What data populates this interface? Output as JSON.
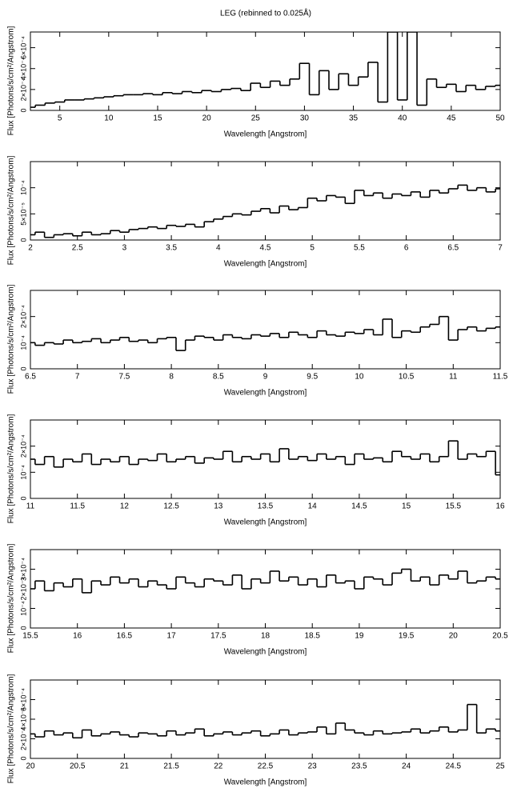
{
  "chart_data": [
    {
      "type": "step",
      "title": "LEG (rebinned to 0.025Å)",
      "x_label": "Wavelength [Angstrom]",
      "y_label": "Flux [Photons/s/cm²/Angstrom]",
      "color": "#000000",
      "xlim": [
        2,
        50
      ],
      "xticks": [
        5,
        10,
        15,
        20,
        25,
        30,
        35,
        40,
        45,
        50
      ],
      "ylim": [
        0,
        0.00075
      ],
      "yticks": [
        0,
        {
          "value": 0.0002,
          "label": "2×10⁻⁴"
        },
        {
          "value": 0.0004,
          "label": "4×10⁻⁴"
        },
        {
          "value": 0.0006,
          "label": "6×10⁻⁴"
        }
      ],
      "x": [
        2,
        3,
        4,
        5,
        6,
        7,
        8,
        9,
        10,
        11,
        12,
        13,
        14,
        15,
        16,
        17,
        18,
        19,
        20,
        21,
        22,
        23,
        24,
        25,
        26,
        27,
        28,
        29,
        30,
        31,
        32,
        33,
        34,
        35,
        36,
        37,
        38,
        39,
        40,
        41,
        42,
        43,
        44,
        45,
        46,
        47,
        48,
        49,
        50
      ],
      "values": [
        3e-05,
        5e-05,
        7e-05,
        8e-05,
        0.0001,
        0.0001,
        0.00011,
        0.00012,
        0.00013,
        0.00014,
        0.00015,
        0.00015,
        0.00016,
        0.00015,
        0.00017,
        0.00016,
        0.00018,
        0.00017,
        0.00019,
        0.00018,
        0.0002,
        0.00021,
        0.00019,
        0.00026,
        0.00022,
        0.00028,
        0.00024,
        0.0003,
        0.00045,
        0.00015,
        0.00038,
        0.0002,
        0.00035,
        0.00024,
        0.00032,
        0.00046,
        8e-05,
        0.00075,
        0.0001,
        0.00075,
        5e-05,
        0.0003,
        0.00022,
        0.00025,
        0.00018,
        0.00024,
        0.0002,
        0.00023,
        0.00024
      ]
    },
    {
      "type": "step",
      "x_label": "Wavelength [Angstrom]",
      "y_label": "Flux [Photons/s/cm²/Angstrom]",
      "color": "#000000",
      "xlim": [
        2,
        7
      ],
      "xticks": [
        2,
        2.5,
        3,
        3.5,
        4,
        4.5,
        5,
        5.5,
        6,
        6.5,
        7
      ],
      "ylim": [
        0,
        0.00015
      ],
      "yticks": [
        0,
        {
          "value": 5e-05,
          "label": "5×10⁻⁵"
        },
        {
          "value": 0.0001,
          "label": "10⁻⁴"
        }
      ],
      "x": [
        2.0,
        2.1,
        2.2,
        2.3,
        2.4,
        2.5,
        2.6,
        2.7,
        2.8,
        2.9,
        3.0,
        3.1,
        3.2,
        3.3,
        3.4,
        3.5,
        3.6,
        3.7,
        3.8,
        3.9,
        4.0,
        4.1,
        4.2,
        4.3,
        4.4,
        4.5,
        4.6,
        4.7,
        4.8,
        4.9,
        5.0,
        5.1,
        5.2,
        5.3,
        5.4,
        5.5,
        5.6,
        5.7,
        5.8,
        5.9,
        6.0,
        6.1,
        6.2,
        6.3,
        6.4,
        6.5,
        6.6,
        6.7,
        6.8,
        6.9,
        7.0
      ],
      "values": [
        1e-05,
        1.5e-05,
        5e-06,
        1e-05,
        1.2e-05,
        8e-06,
        1.5e-05,
        1e-05,
        1.2e-05,
        1.8e-05,
        1.5e-05,
        2e-05,
        2.2e-05,
        2.5e-05,
        2.2e-05,
        2.8e-05,
        2.6e-05,
        3e-05,
        2.5e-05,
        3.5e-05,
        4e-05,
        4.5e-05,
        5e-05,
        4.8e-05,
        5.5e-05,
        6e-05,
        5.2e-05,
        6.5e-05,
        5.8e-05,
        6.2e-05,
        8e-05,
        7.5e-05,
        8.5e-05,
        8.2e-05,
        7e-05,
        9.5e-05,
        8.5e-05,
        9e-05,
        8e-05,
        8.8e-05,
        8.5e-05,
        9.2e-05,
        8.2e-05,
        9.5e-05,
        9e-05,
        9.8e-05,
        0.000105,
        9.5e-05,
        0.0001,
        9.2e-05,
        9.8e-05
      ]
    },
    {
      "type": "step",
      "x_label": "Wavelength [Angstrom]",
      "y_label": "Flux [Photons/s/cm²/Angstrom]",
      "color": "#000000",
      "xlim": [
        6.5,
        11.5
      ],
      "xticks": [
        6.5,
        7,
        7.5,
        8,
        8.5,
        9,
        9.5,
        10,
        10.5,
        11,
        11.5
      ],
      "ylim": [
        0,
        0.0003
      ],
      "yticks": [
        0,
        {
          "value": 0.0001,
          "label": "10⁻⁴"
        },
        {
          "value": 0.0002,
          "label": "2×10⁻⁴"
        }
      ],
      "x": [
        6.5,
        6.6,
        6.7,
        6.8,
        6.9,
        7.0,
        7.1,
        7.2,
        7.3,
        7.4,
        7.5,
        7.6,
        7.7,
        7.8,
        7.9,
        8.0,
        8.1,
        8.2,
        8.3,
        8.4,
        8.5,
        8.6,
        8.7,
        8.8,
        8.9,
        9.0,
        9.1,
        9.2,
        9.3,
        9.4,
        9.5,
        9.6,
        9.7,
        9.8,
        9.9,
        10.0,
        10.1,
        10.2,
        10.3,
        10.4,
        10.5,
        10.6,
        10.7,
        10.8,
        10.9,
        11.0,
        11.1,
        11.2,
        11.3,
        11.4,
        11.5
      ],
      "values": [
        0.0001,
        9e-05,
        0.0001,
        9.5e-05,
        0.00011,
        0.0001,
        0.000105,
        0.000115,
        0.0001,
        0.00011,
        0.00012,
        0.000105,
        0.00011,
        0.0001,
        0.000115,
        0.00012,
        7e-05,
        0.00011,
        0.000125,
        0.00012,
        0.00011,
        0.00013,
        0.00012,
        0.000115,
        0.00013,
        0.000125,
        0.000135,
        0.00012,
        0.00014,
        0.00013,
        0.00012,
        0.000145,
        0.00013,
        0.000125,
        0.00014,
        0.000135,
        0.00015,
        0.00013,
        0.00019,
        0.00012,
        0.000145,
        0.00014,
        0.00016,
        0.00017,
        0.0002,
        0.00011,
        0.00015,
        0.00016,
        0.000145,
        0.000155,
        0.00016
      ]
    },
    {
      "type": "step",
      "x_label": "Wavelength [Angstrom]",
      "y_label": "Flux [Photons/s/cm²/Angstrom]",
      "color": "#000000",
      "xlim": [
        11,
        16
      ],
      "xticks": [
        11,
        11.5,
        12,
        12.5,
        13,
        13.5,
        14,
        14.5,
        15,
        15.5,
        16
      ],
      "ylim": [
        0,
        0.0003
      ],
      "yticks": [
        0,
        {
          "value": 0.0001,
          "label": "10⁻⁴"
        },
        {
          "value": 0.0002,
          "label": "2×10⁻⁴"
        }
      ],
      "x": [
        11.0,
        11.1,
        11.2,
        11.3,
        11.4,
        11.5,
        11.6,
        11.7,
        11.8,
        11.9,
        12.0,
        12.1,
        12.2,
        12.3,
        12.4,
        12.5,
        12.6,
        12.7,
        12.8,
        12.9,
        13.0,
        13.1,
        13.2,
        13.3,
        13.4,
        13.5,
        13.6,
        13.7,
        13.8,
        13.9,
        14.0,
        14.1,
        14.2,
        14.3,
        14.4,
        14.5,
        14.6,
        14.7,
        14.8,
        14.9,
        15.0,
        15.1,
        15.2,
        15.3,
        15.4,
        15.5,
        15.6,
        15.7,
        15.8,
        15.9,
        16.0
      ],
      "values": [
        0.00015,
        0.00013,
        0.00016,
        0.00012,
        0.00015,
        0.00014,
        0.00017,
        0.00013,
        0.00015,
        0.00014,
        0.00016,
        0.00013,
        0.00015,
        0.000145,
        0.00017,
        0.00014,
        0.00015,
        0.00016,
        0.000135,
        0.000155,
        0.00015,
        0.00018,
        0.00014,
        0.00016,
        0.00015,
        0.00017,
        0.00014,
        0.00019,
        0.00015,
        0.00016,
        0.000145,
        0.00017,
        0.00015,
        0.00016,
        0.00013,
        0.00017,
        0.00015,
        0.000155,
        0.00014,
        0.00018,
        0.00016,
        0.00015,
        0.00017,
        0.00014,
        0.00016,
        0.00022,
        0.00015,
        0.00017,
        0.00016,
        0.00018,
        9e-05
      ]
    },
    {
      "type": "step",
      "x_label": "Wavelength [Angstrom]",
      "y_label": "Flux [Photons/s/cm²/Angstrom]",
      "color": "#000000",
      "xlim": [
        15.5,
        20.5
      ],
      "xticks": [
        15.5,
        16,
        16.5,
        17,
        17.5,
        18,
        18.5,
        19,
        19.5,
        20,
        20.5
      ],
      "ylim": [
        0,
        0.0004
      ],
      "yticks": [
        0,
        {
          "value": 0.0001,
          "label": "10⁻⁴"
        },
        {
          "value": 0.0002,
          "label": "2×10⁻⁴"
        },
        {
          "value": 0.0003,
          "label": "3×10⁻⁴"
        }
      ],
      "x": [
        15.5,
        15.6,
        15.7,
        15.8,
        15.9,
        16.0,
        16.1,
        16.2,
        16.3,
        16.4,
        16.5,
        16.6,
        16.7,
        16.8,
        16.9,
        17.0,
        17.1,
        17.2,
        17.3,
        17.4,
        17.5,
        17.6,
        17.7,
        17.8,
        17.9,
        18.0,
        18.1,
        18.2,
        18.3,
        18.4,
        18.5,
        18.6,
        18.7,
        18.8,
        18.9,
        19.0,
        19.1,
        19.2,
        19.3,
        19.4,
        19.5,
        19.6,
        19.7,
        19.8,
        19.9,
        20.0,
        20.1,
        20.2,
        20.3,
        20.4,
        20.5
      ],
      "values": [
        0.0002,
        0.00024,
        0.00019,
        0.00023,
        0.00021,
        0.00025,
        0.00018,
        0.00024,
        0.00022,
        0.00026,
        0.00023,
        0.00025,
        0.00021,
        0.00024,
        0.00022,
        0.0002,
        0.00026,
        0.00023,
        0.00021,
        0.00025,
        0.00024,
        0.00022,
        0.00027,
        0.0002,
        0.00025,
        0.00023,
        0.00029,
        0.00024,
        0.00026,
        0.00022,
        0.00025,
        0.00021,
        0.00027,
        0.00023,
        0.00024,
        0.0002,
        0.00026,
        0.00025,
        0.00022,
        0.00028,
        0.0003,
        0.00024,
        0.00026,
        0.00022,
        0.00027,
        0.00025,
        0.00029,
        0.00023,
        0.00024,
        0.00026,
        0.00025
      ]
    },
    {
      "type": "step",
      "x_label": "Wavelength [Angstrom]",
      "y_label": "Flux [Photons/s/cm²/Angstrom]",
      "color": "#000000",
      "xlim": [
        20,
        25
      ],
      "xticks": [
        20,
        20.5,
        21,
        21.5,
        22,
        22.5,
        23,
        23.5,
        24,
        24.5,
        25
      ],
      "ylim": [
        0,
        0.0008
      ],
      "yticks": [
        0,
        {
          "value": 0.0002,
          "label": "2×10⁻⁴"
        },
        {
          "value": 0.0004,
          "label": "4×10⁻⁴"
        },
        {
          "value": 0.0006,
          "label": "6×10⁻⁴"
        }
      ],
      "x": [
        20.0,
        20.1,
        20.2,
        20.3,
        20.4,
        20.5,
        20.6,
        20.7,
        20.8,
        20.9,
        21.0,
        21.1,
        21.2,
        21.3,
        21.4,
        21.5,
        21.6,
        21.7,
        21.8,
        21.9,
        22.0,
        22.1,
        22.2,
        22.3,
        22.4,
        22.5,
        22.6,
        22.7,
        22.8,
        22.9,
        23.0,
        23.1,
        23.2,
        23.3,
        23.4,
        23.5,
        23.6,
        23.7,
        23.8,
        23.9,
        24.0,
        24.1,
        24.2,
        24.3,
        24.4,
        24.5,
        24.6,
        24.7,
        24.8,
        24.9,
        25.0
      ],
      "values": [
        0.00025,
        0.00022,
        0.00028,
        0.00024,
        0.00026,
        0.00021,
        0.00029,
        0.00023,
        0.00025,
        0.00027,
        0.00024,
        0.00022,
        0.00026,
        0.00025,
        0.00023,
        0.00028,
        0.00024,
        0.00026,
        0.0003,
        0.00023,
        0.00025,
        0.00027,
        0.00024,
        0.00026,
        0.00028,
        0.00023,
        0.00025,
        0.00029,
        0.00024,
        0.00026,
        0.00027,
        0.00032,
        0.00025,
        0.00036,
        0.00029,
        0.00026,
        0.00024,
        0.00028,
        0.00025,
        0.00026,
        0.00027,
        0.0003,
        0.00026,
        0.00028,
        0.00032,
        0.00027,
        0.00029,
        0.00055,
        0.00026,
        0.0003,
        0.00028
      ]
    }
  ]
}
